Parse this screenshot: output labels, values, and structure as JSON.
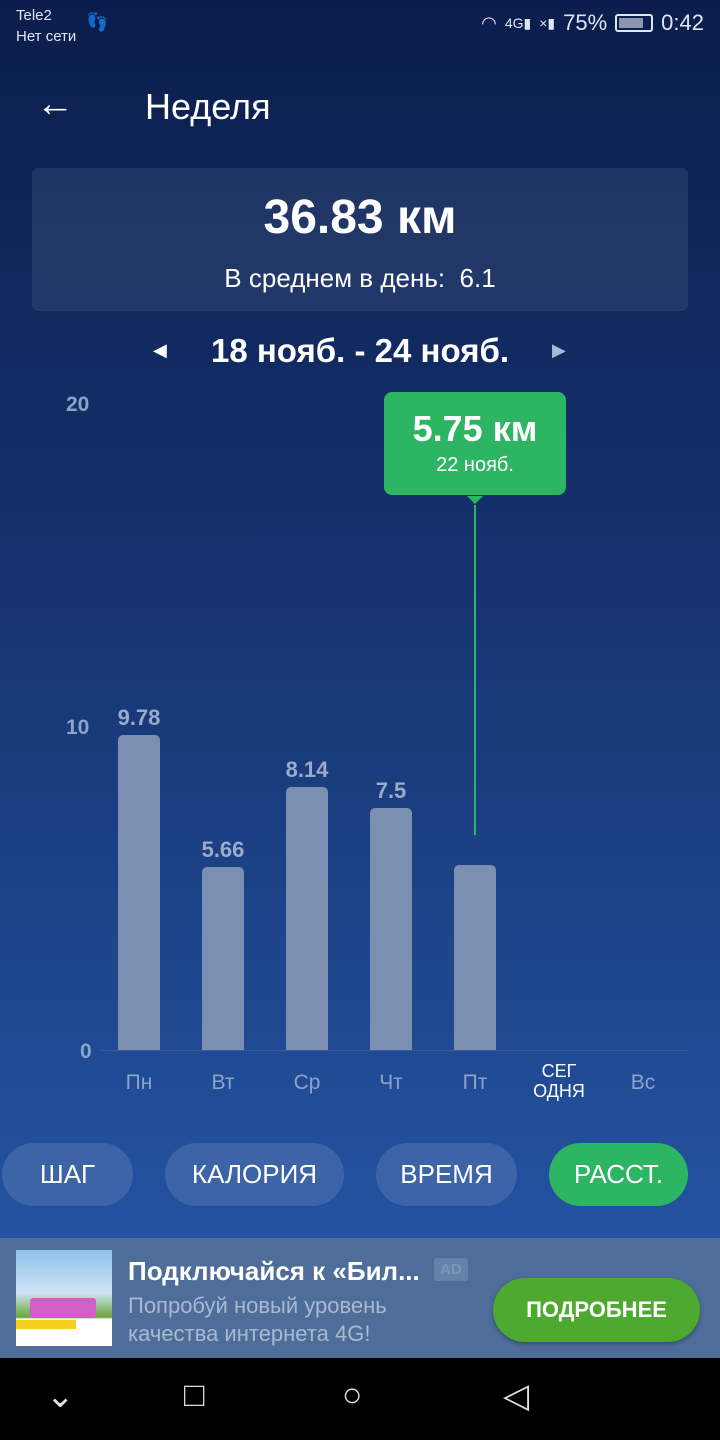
{
  "status_bar": {
    "carrier": "Tele2",
    "network": "Нет сети",
    "battery": "75%",
    "time": "0:42",
    "icons": [
      "footsteps-icon",
      "wifi-icon",
      "signal-4g-icon",
      "signal-no-sim-icon",
      "battery-saver-icon"
    ]
  },
  "header": {
    "title": "Неделя",
    "back_icon": "arrow-left-icon"
  },
  "summary": {
    "total": "36.83 км",
    "average_label": "В среднем в день:",
    "average_value": "6.1"
  },
  "date_range": "18 нояб. - 24 нояб.",
  "tooltip": {
    "value": "5.75 км",
    "date": "22 нояб."
  },
  "chart_data": {
    "type": "bar",
    "categories": [
      "Пн",
      "Вт",
      "Ср",
      "Чт",
      "Пт",
      "СЕГ ОДНЯ",
      "Вс"
    ],
    "values": [
      9.78,
      5.66,
      8.14,
      7.5,
      5.75,
      null,
      null
    ],
    "value_labels": [
      "9.78",
      "5.66",
      "8.14",
      "7.5",
      "",
      "",
      ""
    ],
    "yticks": [
      "0",
      "10",
      "20"
    ],
    "ylim": [
      0,
      20
    ],
    "selected_index": 4,
    "bar_color": "#7b8fb2",
    "highlight_color": "#2eb564"
  },
  "tabs": [
    {
      "label": "ШАГ",
      "active": false
    },
    {
      "label": "КАЛОРИЯ",
      "active": false
    },
    {
      "label": "ВРЕМЯ",
      "active": false
    },
    {
      "label": "РАССТ.",
      "active": true
    }
  ],
  "ad": {
    "title": "Подключайся к «Бил...",
    "badge": "AD",
    "text_line1": "Попробуй новый уровень",
    "text_line2": "качества интернета 4G!",
    "button": "ПОДРОБНЕЕ"
  },
  "colors": {
    "accent": "#2eb564",
    "ad_button": "#4ea931"
  }
}
